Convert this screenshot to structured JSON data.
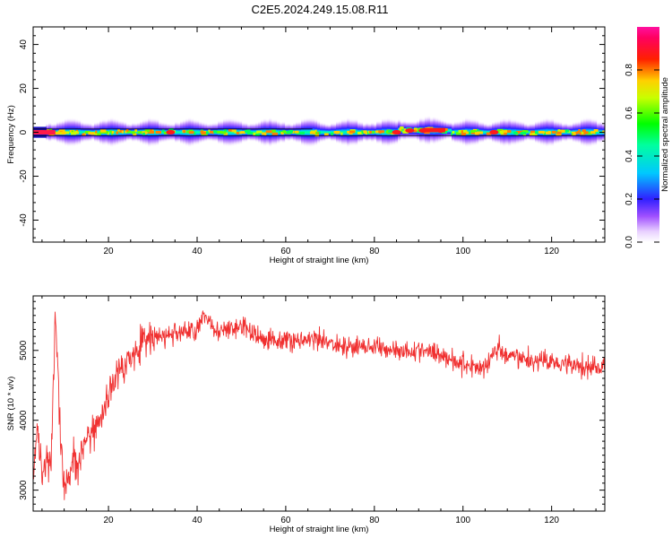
{
  "title": "C2E5.2024.249.15.08.R11",
  "spectrogram": {
    "type": "heatmap",
    "xlabel": "Height of straight line (km)",
    "ylabel": "Frequency (Hz)",
    "xlim": [
      3,
      132
    ],
    "ylim": [
      -50,
      48
    ],
    "xticks": [
      20,
      40,
      60,
      80,
      100,
      120
    ],
    "yticks": [
      -40,
      -20,
      0,
      20,
      40
    ],
    "colorbar": {
      "label": "Normalized spectral amplitude",
      "range": [
        0,
        1
      ],
      "ticks": [
        "0.0",
        "0.2",
        "0.4",
        "0.6",
        "0.8"
      ],
      "colormap": "rainbow (magenta-blue-cyan-green-yellow-red-pink)"
    },
    "band_center_hz": 0,
    "band_halfwidth_hz": 5,
    "band_start_km": 6,
    "hot_spots_km": [
      5,
      7,
      34,
      85,
      88,
      91,
      95,
      107
    ],
    "reference_line_hz": 1.5
  },
  "chart_data": {
    "type": "line",
    "title": "",
    "xlabel": "Height of straight line (km)",
    "ylabel": "SNR (10 * v/v)",
    "xlim": [
      3,
      132
    ],
    "ylim": [
      2700,
      5780
    ],
    "xticks": [
      20,
      40,
      60,
      80,
      100,
      120
    ],
    "yticks": [
      3000,
      4000,
      5000
    ],
    "color": "#f03030",
    "x": [
      3,
      4,
      5,
      6,
      7,
      8,
      9,
      10,
      11,
      12,
      13,
      15,
      18,
      20,
      22,
      25,
      28,
      30,
      35,
      40,
      42,
      45,
      50,
      55,
      60,
      65,
      70,
      75,
      80,
      85,
      90,
      95,
      100,
      105,
      108,
      110,
      115,
      120,
      125,
      130,
      132
    ],
    "y": [
      3350,
      3800,
      3250,
      3500,
      3350,
      5550,
      3900,
      2900,
      3150,
      3550,
      3400,
      3700,
      4000,
      4350,
      4700,
      4900,
      5150,
      5150,
      5250,
      5300,
      5500,
      5250,
      5350,
      5150,
      5150,
      5150,
      5100,
      5050,
      5050,
      5000,
      5000,
      4950,
      4800,
      4750,
      5050,
      4900,
      4850,
      4850,
      4800,
      4750,
      4750
    ]
  }
}
